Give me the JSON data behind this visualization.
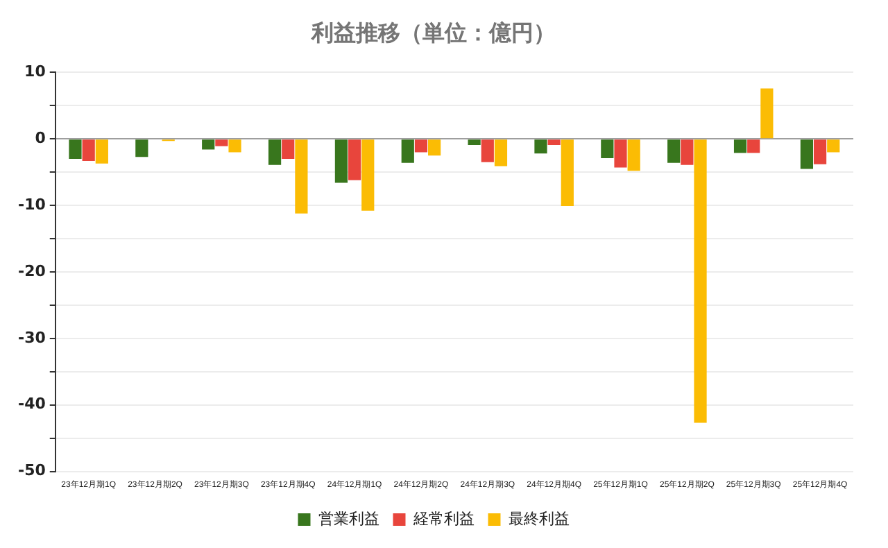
{
  "chart_data": {
    "type": "bar",
    "title": "利益推移（単位：億円）",
    "categories": [
      "23年12月期1Q",
      "23年12月期2Q",
      "23年12月期3Q",
      "23年12月期4Q",
      "24年12月期1Q",
      "24年12月期2Q",
      "24年12月期3Q",
      "24年12月期4Q",
      "25年12月期1Q",
      "25年12月期2Q",
      "25年12月期3Q",
      "25年12月期4Q"
    ],
    "series": [
      {
        "name": "営業利益",
        "color": "#38761d",
        "values": [
          -3.0,
          -2.7,
          -1.6,
          -3.9,
          -6.6,
          -3.6,
          -0.9,
          -2.2,
          -2.9,
          -3.6,
          -2.1,
          -4.5
        ]
      },
      {
        "name": "経常利益",
        "color": "#e8453c",
        "values": [
          -3.3,
          0,
          -1.1,
          -3.0,
          -6.2,
          -2.0,
          -3.5,
          -0.9,
          -4.3,
          -3.9,
          -2.1,
          -3.8
        ]
      },
      {
        "name": "最終利益",
        "color": "#fbbc04",
        "values": [
          -3.7,
          -0.3,
          -2.0,
          -11.2,
          -10.8,
          -2.5,
          -4.1,
          -10.1,
          -4.8,
          -42.7,
          7.6,
          -2.0
        ]
      }
    ],
    "ylim": [
      -50,
      10
    ],
    "yticks": [
      {
        "value": -50,
        "label": "-50"
      },
      {
        "value": -45,
        "label": null
      },
      {
        "value": -40,
        "label": "-40"
      },
      {
        "value": -35,
        "label": null
      },
      {
        "value": -30,
        "label": "-30"
      },
      {
        "value": -25,
        "label": null
      },
      {
        "value": -20,
        "label": "-20"
      },
      {
        "value": -15,
        "label": null
      },
      {
        "value": -10,
        "label": "-10"
      },
      {
        "value": -5,
        "label": null
      },
      {
        "value": 0,
        "label": "0"
      },
      {
        "value": 5,
        "label": null
      },
      {
        "value": 10,
        "label": "10"
      }
    ],
    "grid": "y",
    "legend": "bottom"
  }
}
